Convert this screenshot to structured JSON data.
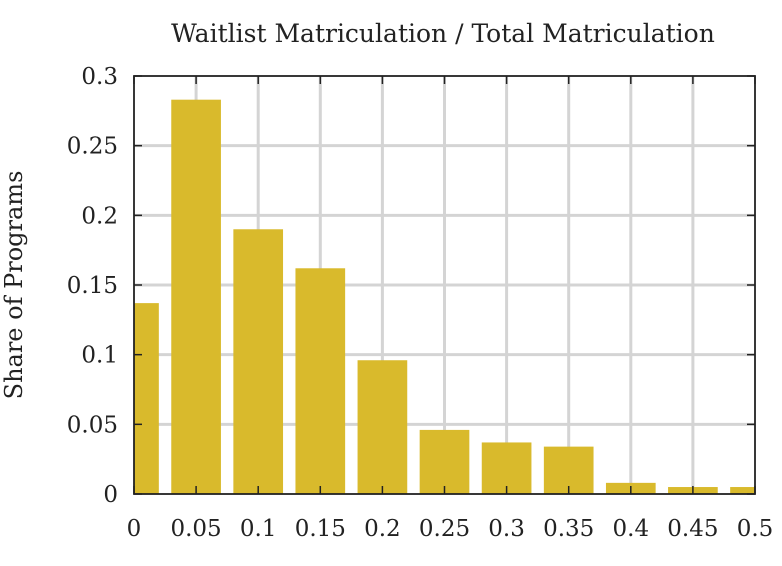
{
  "chart_data": {
    "type": "bar",
    "title": "Waitlist Matriculation / Total Matriculation",
    "xlabel": "",
    "ylabel": "Share of Programs",
    "x_ticks": [
      "0",
      "0.05",
      "0.1",
      "0.15",
      "0.2",
      "0.25",
      "0.3",
      "0.35",
      "0.4",
      "0.45",
      "0.5"
    ],
    "y_ticks": [
      "0",
      "0.05",
      "0.1",
      "0.15",
      "0.2",
      "0.25",
      "0.3"
    ],
    "xlim": [
      0,
      0.5
    ],
    "ylim": [
      0,
      0.3
    ],
    "bin_width": 0.05,
    "bins": [
      {
        "x": 0.0,
        "value": 0.137
      },
      {
        "x": 0.05,
        "value": 0.283
      },
      {
        "x": 0.1,
        "value": 0.19
      },
      {
        "x": 0.15,
        "value": 0.162
      },
      {
        "x": 0.2,
        "value": 0.096
      },
      {
        "x": 0.25,
        "value": 0.046
      },
      {
        "x": 0.3,
        "value": 0.037
      },
      {
        "x": 0.35,
        "value": 0.034
      },
      {
        "x": 0.4,
        "value": 0.008
      },
      {
        "x": 0.45,
        "value": 0.005
      },
      {
        "x": 0.5,
        "value": 0.005
      }
    ],
    "bar_color": "#d9ba2c",
    "grid": true,
    "legend": "none"
  }
}
